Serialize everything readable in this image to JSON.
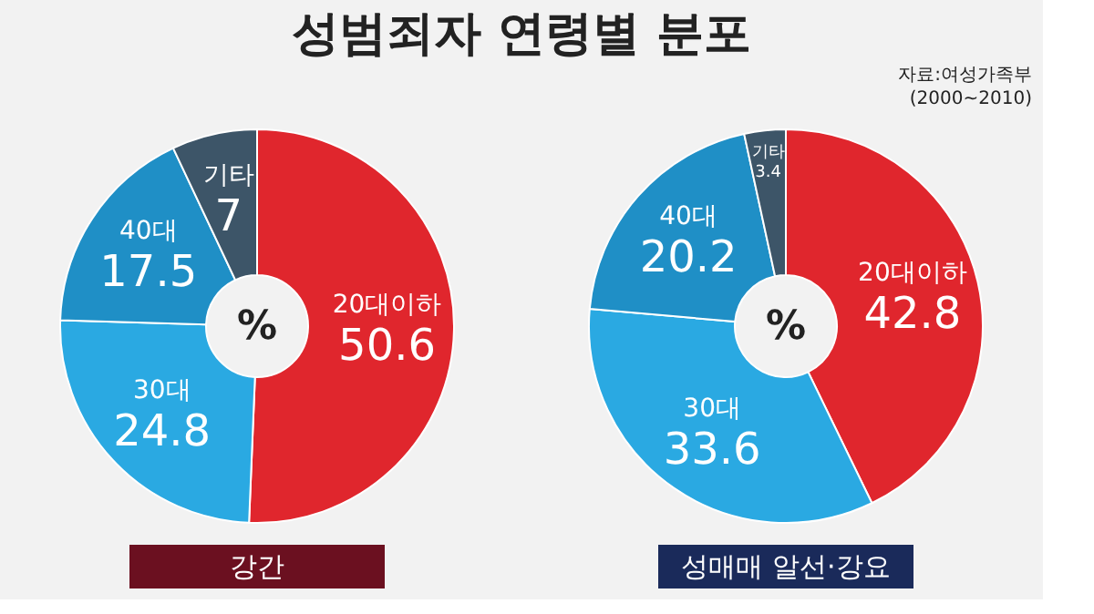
{
  "chart_data": [
    {
      "type": "donut",
      "title": "성범죄자 연령별 분포",
      "xlabel": "강간",
      "categories": [
        "20대이하",
        "30대",
        "40대",
        "기타"
      ],
      "values": [
        50.6,
        24.8,
        17.5,
        7
      ],
      "colors": [
        "#e0262d",
        "#2aa9e2",
        "#1f8fc6",
        "#3d5568"
      ],
      "data_labels": true,
      "legend": false,
      "annotations": [
        "%"
      ]
    },
    {
      "type": "donut",
      "xlabel": "성매매 알선·강요",
      "categories": [
        "20대이하",
        "30대",
        "40대",
        "기타"
      ],
      "values": [
        42.8,
        33.6,
        20.2,
        3.4
      ],
      "colors": [
        "#e0262d",
        "#2aa9e2",
        "#1f8fc6",
        "#3d5568"
      ],
      "data_labels": true,
      "legend": false,
      "annotations": [
        "%",
        "자료:여성가족부",
        "(2000~2010)"
      ]
    }
  ]
}
